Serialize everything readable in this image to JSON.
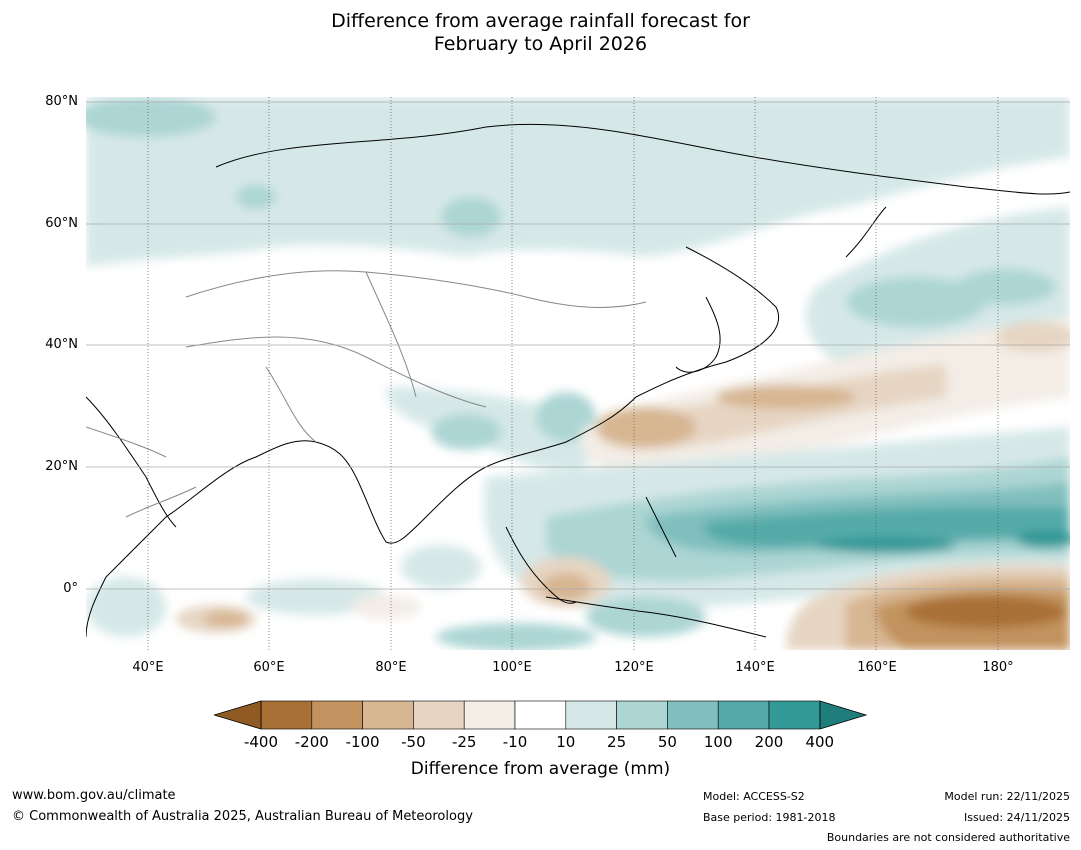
{
  "title": {
    "line1": "Difference from average rainfall forecast for",
    "line2": "February to April 2026"
  },
  "map": {
    "lat_labels": [
      "80°N",
      "60°N",
      "40°N",
      "20°N",
      "0°"
    ],
    "lon_labels": [
      "40°E",
      "60°E",
      "80°E",
      "100°E",
      "120°E",
      "140°E",
      "160°E",
      "180°"
    ]
  },
  "colorbar": {
    "labels": [
      "-400",
      "-200",
      "-100",
      "-50",
      "-25",
      "-10",
      "10",
      "25",
      "50",
      "100",
      "200",
      "400"
    ],
    "colors": [
      "#a97035",
      "#c2935e",
      "#d7b692",
      "#e6d5c3",
      "#f3ede6",
      "#ffffff",
      "#d5e8e7",
      "#acd5d4",
      "#80bfbe",
      "#55aaa9",
      "#339997"
    ],
    "low_extend_color": "#8f5a24",
    "high_extend_color": "#1f7e7c",
    "title": "Difference from average (mm)"
  },
  "footer": {
    "website": "www.bom.gov.au/climate",
    "copyright": "© Commonwealth of Australia 2025, Australian Bureau of Meteorology",
    "model": "Model: ACCESS-S2",
    "base_period": "Base period: 1981-2018",
    "model_run": "Model run: 22/11/2025",
    "issued": "Issued: 24/11/2025",
    "disclaimer": "Boundaries are not considered authoritative"
  }
}
